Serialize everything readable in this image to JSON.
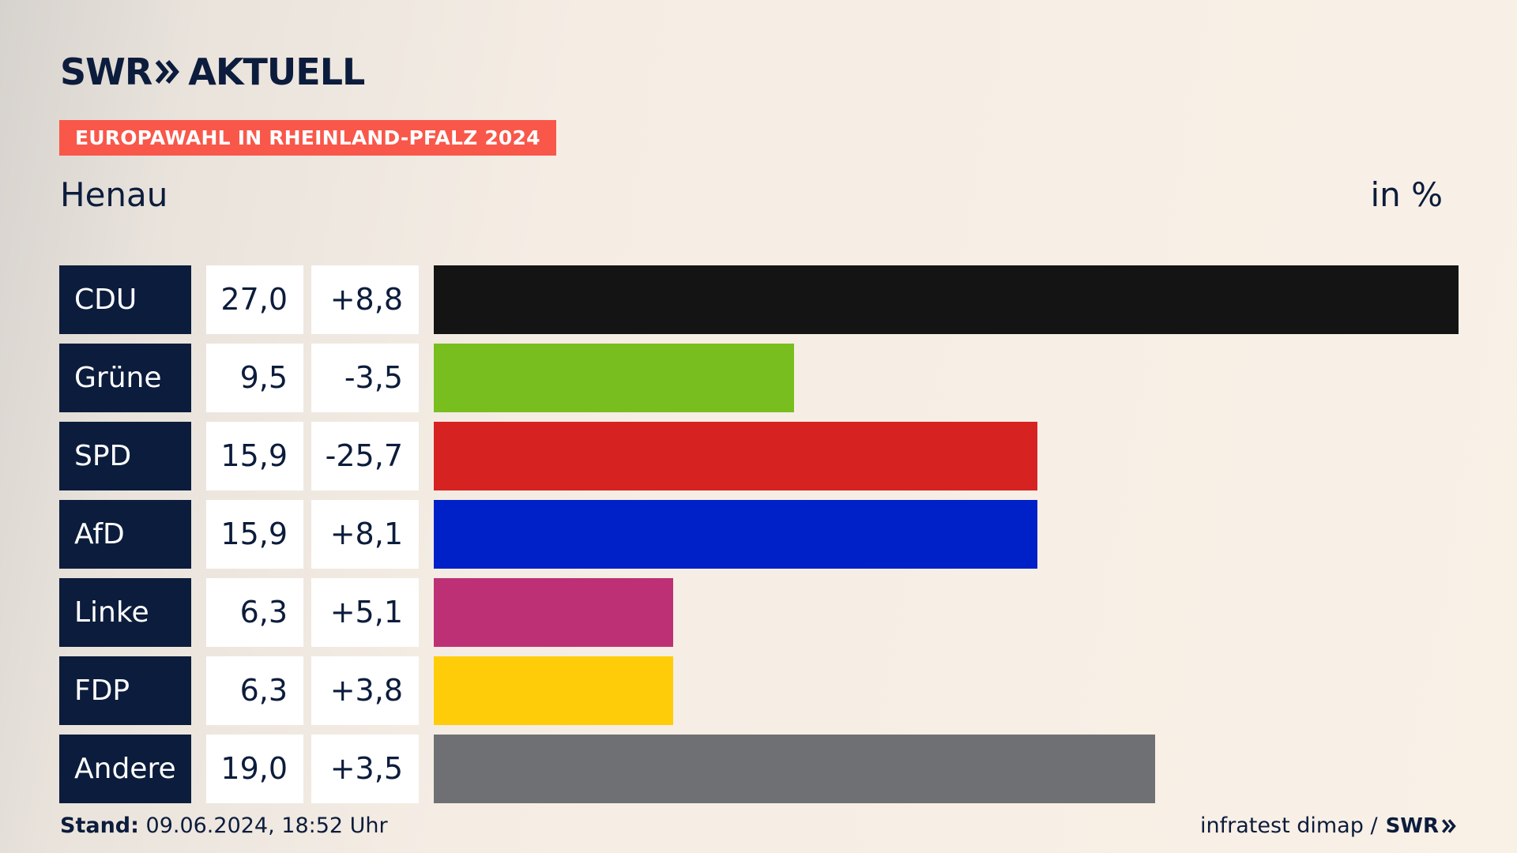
{
  "brand": {
    "swr": "SWR",
    "aktuell": "AKTUELL",
    "logo_icon": "double-chevron-right-icon",
    "color_navy": "#0c1c3c",
    "color_badge": "#f9574a"
  },
  "badge": "EUROPAWAHL IN RHEINLAND-PFALZ 2024",
  "region": "Henau",
  "unit": "in %",
  "footer": {
    "stand_label": "Stand:",
    "stand_value": "09.06.2024, 18:52 Uhr",
    "source": "infratest dimap /",
    "source_brand": "SWR"
  },
  "chart_data": {
    "type": "bar",
    "orientation": "horizontal",
    "title": "",
    "xlabel": "",
    "ylabel": "",
    "xlim": [
      0,
      27.0
    ],
    "categories": [
      "CDU",
      "Grüne",
      "SPD",
      "AfD",
      "Linke",
      "FDP",
      "Andere"
    ],
    "values": [
      27.0,
      9.5,
      15.9,
      15.9,
      6.3,
      6.3,
      19.0
    ],
    "value_labels": [
      "27,0",
      "9,5",
      "15,9",
      "15,9",
      "6,3",
      "6,3",
      "19,0"
    ],
    "diff_labels": [
      "+8,8",
      "-3,5",
      "-25,7",
      "+8,1",
      "+5,1",
      "+3,8",
      "+3,5"
    ],
    "diffs": [
      8.8,
      -3.5,
      -25.7,
      8.1,
      5.1,
      3.8,
      3.5
    ],
    "colors": [
      "#141414",
      "#78be1e",
      "#d72222",
      "#0020c8",
      "#be3075",
      "#ffcc0a",
      "#6f7073"
    ]
  }
}
